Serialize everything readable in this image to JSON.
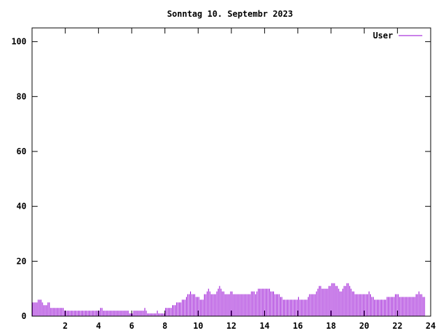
{
  "chart_data": {
    "type": "bar",
    "title": "Sonntag 10. Septembr 2023",
    "xlabel": "",
    "ylabel": "",
    "xlim": [
      0,
      24
    ],
    "ylim": [
      0,
      105
    ],
    "x_ticks": [
      2,
      4,
      6,
      8,
      10,
      12,
      14,
      16,
      18,
      20,
      22,
      24
    ],
    "y_ticks": [
      0,
      20,
      40,
      60,
      80,
      100
    ],
    "grid": false,
    "legend": {
      "position": "top-right"
    },
    "series": [
      {
        "name": "User",
        "color": "#9400d3",
        "interval_minutes": 5,
        "values": [
          5,
          5,
          5,
          5,
          6,
          6,
          6,
          5,
          4,
          4,
          4,
          5,
          5,
          3,
          3,
          3,
          3,
          3,
          3,
          3,
          3,
          3,
          3,
          2,
          2,
          2,
          2,
          2,
          2,
          2,
          2,
          2,
          2,
          2,
          2,
          2,
          2,
          2,
          2,
          2,
          2,
          2,
          2,
          2,
          2,
          2,
          2,
          2,
          2,
          3,
          3,
          2,
          2,
          2,
          2,
          2,
          2,
          2,
          2,
          2,
          2,
          2,
          2,
          2,
          2,
          2,
          2,
          2,
          2,
          2,
          1,
          1,
          1,
          2,
          2,
          2,
          2,
          2,
          2,
          2,
          2,
          3,
          2,
          1,
          1,
          1,
          1,
          1,
          1,
          1,
          2,
          1,
          1,
          1,
          1,
          1,
          3,
          3,
          3,
          3,
          3,
          4,
          4,
          4,
          5,
          5,
          5,
          5,
          6,
          6,
          6,
          7,
          8,
          8,
          9,
          8,
          8,
          8,
          7,
          7,
          7,
          6,
          6,
          6,
          8,
          8,
          9,
          10,
          9,
          8,
          8,
          8,
          8,
          9,
          10,
          11,
          10,
          9,
          9,
          8,
          8,
          8,
          8,
          9,
          9,
          8,
          8,
          8,
          8,
          8,
          8,
          8,
          8,
          8,
          8,
          8,
          8,
          8,
          9,
          9,
          9,
          8,
          9,
          10,
          10,
          10,
          10,
          10,
          10,
          10,
          10,
          10,
          9,
          9,
          9,
          8,
          8,
          8,
          8,
          7,
          7,
          6,
          6,
          6,
          6,
          6,
          6,
          6,
          6,
          6,
          6,
          6,
          7,
          6,
          6,
          6,
          6,
          6,
          6,
          7,
          8,
          8,
          8,
          8,
          8,
          9,
          10,
          11,
          11,
          10,
          10,
          10,
          10,
          10,
          11,
          11,
          12,
          12,
          12,
          11,
          11,
          10,
          9,
          9,
          10,
          11,
          11,
          12,
          12,
          11,
          10,
          9,
          9,
          8,
          8,
          8,
          8,
          8,
          8,
          8,
          8,
          8,
          8,
          9,
          8,
          7,
          7,
          6,
          6,
          6,
          6,
          6,
          6,
          6,
          6,
          6,
          7,
          7,
          7,
          7,
          7,
          7,
          8,
          8,
          8,
          7,
          7,
          7,
          7,
          7,
          7,
          7,
          7,
          7,
          7,
          7,
          7,
          8,
          8,
          9,
          8,
          8,
          7,
          7
        ]
      }
    ]
  }
}
